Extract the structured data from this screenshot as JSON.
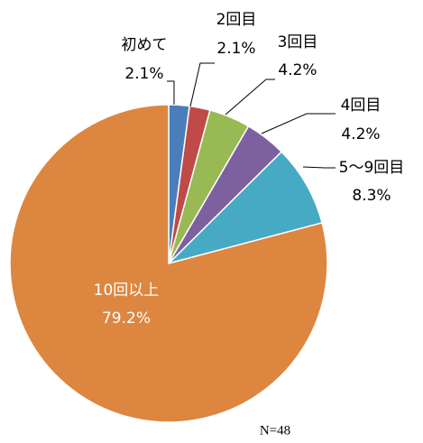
{
  "chart_data": {
    "type": "pie",
    "categories": [
      "初めて",
      "2回目",
      "3回目",
      "4回目",
      "5～9回目",
      "10回以上"
    ],
    "values": [
      2.1,
      2.1,
      4.2,
      4.2,
      8.3,
      79.2
    ],
    "value_labels": [
      "2.1%",
      "2.1%",
      "4.2%",
      "4.2%",
      "8.3%",
      "79.2%"
    ],
    "colors": [
      "#4a7ebb",
      "#be4b48",
      "#98b954",
      "#7d60a0",
      "#46aac5",
      "#dd8640"
    ],
    "annotation": "N=48"
  }
}
